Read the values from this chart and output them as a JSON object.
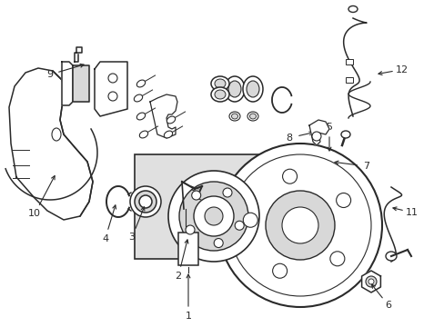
{
  "bg_color": "#ffffff",
  "line_color": "#2a2a2a",
  "fill_light": "#d8d8d8",
  "box_fill": "#e0e0e0",
  "figsize": [
    4.89,
    3.6
  ],
  "dpi": 100,
  "xlim": [
    0,
    489
  ],
  "ylim": [
    0,
    360
  ]
}
